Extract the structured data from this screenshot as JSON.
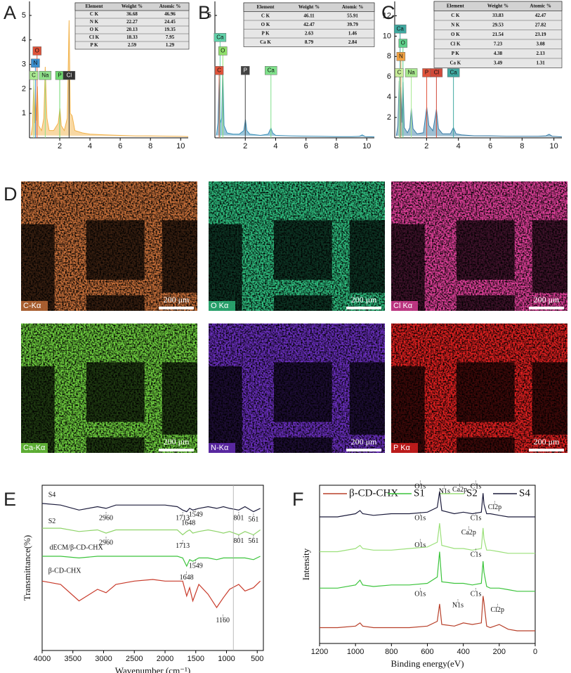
{
  "chart_data": [
    {
      "label": "A",
      "type": "area",
      "x": [
        0.1,
        0.2,
        0.28,
        0.35,
        0.39,
        0.45,
        0.52,
        0.6,
        0.8,
        0.95,
        1.04,
        1.15,
        1.3,
        1.6,
        1.9,
        2.01,
        2.1,
        2.3,
        2.5,
        2.62,
        2.7,
        2.82,
        3.0,
        3.5,
        4,
        5,
        6,
        7,
        8,
        9,
        10,
        10.5
      ],
      "series": [
        {
          "color": "#f2b24a",
          "values": [
            0.1,
            0.5,
            2.2,
            0.6,
            2.0,
            0.7,
            2.1,
            0.5,
            0.3,
            0.8,
            2.9,
            0.8,
            0.3,
            0.3,
            0.6,
            1.2,
            0.5,
            0.3,
            0.8,
            4.8,
            1.0,
            0.9,
            0.3,
            0.2,
            0.15,
            0.12,
            0.1,
            0.08,
            0.08,
            0.07,
            0.06,
            0.05
          ]
        }
      ],
      "xlim": [
        0,
        10.5
      ],
      "xticks": [
        2,
        4,
        6,
        8,
        10
      ],
      "ylim": [
        0,
        5.4
      ],
      "yticks": [
        1,
        2,
        3,
        4,
        5
      ],
      "annotations": [
        {
          "text": "O",
          "color": "#e0533a"
        },
        {
          "text": "N",
          "color": "#3a8fd0"
        },
        {
          "text": "C",
          "color": "#a8e890"
        },
        {
          "text": "Na",
          "color": "#8fe08a"
        },
        {
          "text": "P",
          "color": "#6fd86f"
        },
        {
          "text": "Cl",
          "color": "#333333"
        }
      ],
      "table": {
        "columns": [
          "Element",
          "Weight %",
          "Atomic %"
        ],
        "rows": [
          [
            "C K",
            36.68,
            46.96
          ],
          [
            "N K",
            22.27,
            24.45
          ],
          [
            "O K",
            20.13,
            19.35
          ],
          [
            "Cl K",
            18.33,
            7.95
          ],
          [
            "P K",
            2.59,
            1.29
          ]
        ]
      }
    },
    {
      "label": "B",
      "type": "area",
      "x": [
        0.1,
        0.2,
        0.28,
        0.35,
        0.45,
        0.52,
        0.6,
        0.8,
        1.2,
        1.6,
        1.9,
        2.01,
        2.1,
        2.3,
        3.0,
        3.5,
        3.69,
        3.8,
        4.0,
        5,
        6,
        7,
        8,
        9,
        9.5,
        9.7,
        9.9,
        10.5
      ],
      "series": [
        {
          "color": "#3a8fb8",
          "values": [
            0.1,
            0.6,
            2.4,
            0.6,
            0.8,
            2.9,
            0.5,
            0.2,
            0.15,
            0.15,
            0.3,
            0.75,
            0.3,
            0.15,
            0.1,
            0.15,
            0.4,
            0.2,
            0.1,
            0.08,
            0.07,
            0.06,
            0.05,
            0.05,
            0.06,
            0.12,
            0.05,
            0.04
          ]
        }
      ],
      "xlim": [
        0,
        10.5
      ],
      "xticks": [
        2,
        4,
        6,
        8,
        10
      ],
      "ylim": [
        0,
        5.4
      ],
      "yticks": [
        5
      ],
      "annotations": [
        {
          "text": "Ca",
          "color": "#5fd0a8"
        },
        {
          "text": "O",
          "color": "#8fe06a"
        },
        {
          "text": "C",
          "color": "#e0533a"
        },
        {
          "text": "P",
          "color": "#444444"
        },
        {
          "text": "Ca",
          "color": "#7fe08a"
        }
      ],
      "table": {
        "columns": [
          "Element",
          "Weight %",
          "Atomic %"
        ],
        "rows": [
          [
            "C K",
            46.11,
            55.91
          ],
          [
            "O K",
            42.47,
            39.79
          ],
          [
            "P K",
            2.63,
            1.46
          ],
          [
            "Ca K",
            8.79,
            2.84
          ]
        ]
      }
    },
    {
      "label": "C",
      "type": "area",
      "x": [
        0.1,
        0.2,
        0.28,
        0.35,
        0.39,
        0.45,
        0.52,
        0.6,
        0.8,
        0.95,
        1.04,
        1.15,
        1.4,
        1.8,
        2.01,
        2.15,
        2.4,
        2.62,
        2.75,
        3.0,
        3.5,
        3.69,
        3.85,
        4.2,
        5,
        6,
        7,
        8,
        9,
        9.5,
        9.7,
        9.9,
        10.5
      ],
      "series": [
        {
          "color": "#3d7fa8",
          "values": [
            0.2,
            1.2,
            5.6,
            1.2,
            5.0,
            1.5,
            5.5,
            1.0,
            0.5,
            1.0,
            2.9,
            0.9,
            0.4,
            0.5,
            3.0,
            1.2,
            0.7,
            2.8,
            0.9,
            0.4,
            0.4,
            1.0,
            0.4,
            0.3,
            0.2,
            0.2,
            0.15,
            0.15,
            0.15,
            0.2,
            0.35,
            0.15,
            0.1
          ]
        }
      ],
      "xlim": [
        0,
        10.5
      ],
      "xticks": [
        2,
        4,
        6,
        8,
        10
      ],
      "ylim": [
        0,
        13
      ],
      "yticks": [
        2,
        4,
        6,
        8,
        10,
        12
      ],
      "annotations": [
        {
          "text": "Ca",
          "color": "#3fa8a0"
        },
        {
          "text": "O",
          "color": "#5fd08a"
        },
        {
          "text": "N",
          "color": "#f0a040"
        },
        {
          "text": "C",
          "color": "#c8ec9a"
        },
        {
          "text": "Na",
          "color": "#a8e890"
        },
        {
          "text": "P",
          "color": "#e0533a"
        },
        {
          "text": "Cl",
          "color": "#d04a3a"
        },
        {
          "text": "Ca",
          "color": "#3fa8a0"
        }
      ],
      "table": {
        "columns": [
          "Element",
          "Weight %",
          "Atomic %"
        ],
        "rows": [
          [
            "C K",
            33.83,
            42.47
          ],
          [
            "N K",
            29.53,
            27.82
          ],
          [
            "O K",
            21.54,
            23.19
          ],
          [
            "Cl K",
            7.23,
            3.08
          ],
          [
            "P K",
            4.38,
            2.13
          ],
          [
            "Ca K",
            3.49,
            1.31
          ]
        ]
      }
    },
    {
      "label": "E",
      "type": "line",
      "x": [
        4000,
        3700,
        3400,
        3100,
        2960,
        2800,
        2500,
        2200,
        2000,
        1800,
        1713,
        1648,
        1600,
        1549,
        1450,
        1300,
        1160,
        1050,
        950,
        801,
        700,
        561,
        450
      ],
      "series": [
        {
          "name": "S4",
          "color": "#1c1c3c",
          "values": [
            89,
            88,
            85,
            87,
            86,
            88,
            88,
            88,
            88,
            87,
            85,
            84,
            86,
            85,
            86,
            87,
            86,
            87,
            86,
            85,
            87,
            84,
            86
          ]
        },
        {
          "name": "S2",
          "color": "#8fd46a",
          "values": [
            74,
            74,
            72,
            73,
            71,
            73,
            73,
            73,
            73,
            73,
            70,
            72,
            73,
            71,
            72,
            73,
            72,
            71,
            72,
            70,
            72,
            70,
            73
          ]
        },
        {
          "name": "dECM/β-CD-CHX",
          "color": "#3cc43c",
          "values": [
            57,
            57,
            56,
            57,
            57,
            57,
            57,
            57,
            57,
            57,
            56,
            51,
            55,
            54,
            56,
            56,
            55,
            56,
            56,
            56,
            56,
            55,
            57
          ]
        },
        {
          "name": "β-CD-CHX",
          "color": "#c83a2a",
          "values": [
            42,
            40,
            30,
            37,
            35,
            40,
            42,
            43,
            42,
            42,
            42,
            33,
            38,
            30,
            40,
            34,
            26,
            32,
            37,
            40,
            36,
            38,
            42
          ]
        }
      ],
      "xlim": [
        4000,
        400
      ],
      "xticks": [
        4000,
        3500,
        3000,
        2500,
        2000,
        1500,
        1000,
        500
      ],
      "ylim": [
        0,
        100
      ],
      "xlabel": "Wavenumber (cm⁻¹)",
      "ylabel": "Transmittance(%)",
      "annotations": [
        {
          "text": "2960"
        },
        {
          "text": "1713"
        },
        {
          "text": "1648"
        },
        {
          "text": "1549"
        },
        {
          "text": "801"
        },
        {
          "text": "561"
        },
        {
          "text": "2960"
        },
        {
          "text": "1713"
        },
        {
          "text": "801"
        },
        {
          "text": "561"
        },
        {
          "text": "1549"
        },
        {
          "text": "1648"
        },
        {
          "text": "1160"
        }
      ]
    },
    {
      "label": "F",
      "type": "line",
      "x": [
        1200,
        1100,
        1000,
        975,
        960,
        900,
        800,
        700,
        600,
        545,
        532,
        520,
        450,
        400,
        350,
        300,
        290,
        285,
        270,
        250,
        200,
        150,
        100,
        0
      ],
      "series": [
        {
          "name": "β-CD-CHX",
          "color": "#b8402a",
          "values": [
            10,
            10,
            11,
            13,
            11,
            10,
            10,
            10,
            11,
            14,
            25,
            12,
            11,
            13,
            12,
            13,
            30,
            26,
            11,
            10,
            12,
            9,
            8,
            8
          ]
        },
        {
          "name": "S1",
          "color": "#3cc43c",
          "values": [
            35,
            35,
            37,
            40,
            37,
            36,
            37,
            37,
            38,
            42,
            58,
            39,
            38,
            38,
            37,
            38,
            52,
            45,
            36,
            35,
            35,
            34,
            33,
            33
          ]
        },
        {
          "name": "S2",
          "color": "#9be07a",
          "values": [
            58,
            58,
            60,
            62,
            60,
            59,
            59,
            60,
            61,
            64,
            76,
            62,
            60,
            60,
            59,
            60,
            73,
            66,
            59,
            59,
            58,
            57,
            57,
            57
          ]
        },
        {
          "name": "S4",
          "color": "#1c1c3c",
          "values": [
            80,
            80,
            82,
            84,
            82,
            81,
            82,
            82,
            83,
            86,
            96,
            84,
            82,
            83,
            82,
            83,
            95,
            88,
            82,
            82,
            81,
            80,
            80,
            80
          ]
        }
      ],
      "xlim": [
        1200,
        0
      ],
      "xticks": [
        1200,
        1000,
        800,
        600,
        400,
        200,
        0
      ],
      "ylim": [
        0,
        100
      ],
      "legend": "top",
      "xlabel": "Binding energy(eV)",
      "ylabel": "Intensity",
      "annotations": [
        {
          "text": "O1s"
        },
        {
          "text": "N1s"
        },
        {
          "text": "Ca2p"
        },
        {
          "text": "C1s"
        },
        {
          "text": "Cl2p"
        },
        {
          "text": "O1s"
        },
        {
          "text": "C1s"
        },
        {
          "text": "Ca2p"
        },
        {
          "text": "O1s"
        },
        {
          "text": "C1s"
        },
        {
          "text": "O1s"
        },
        {
          "text": "N1s"
        },
        {
          "text": "C1s"
        },
        {
          "text": "Cl2p"
        }
      ]
    }
  ],
  "maps": {
    "label": "D",
    "panels": [
      {
        "label": "C-Kα",
        "scale": "200 μm",
        "color": "#c8703a"
      },
      {
        "label": "O Kα",
        "scale": "200 μm",
        "color": "#2fbf80"
      },
      {
        "label": "Cl Kα",
        "scale": "200 μm",
        "color": "#e0409a"
      },
      {
        "label": "Ca-Kα",
        "scale": "200 μm",
        "color": "#6fcf3f"
      },
      {
        "label": "N-Kα",
        "scale": "200 μm",
        "color": "#6a2fbf"
      },
      {
        "label": "P Kα",
        "scale": "200 μm",
        "color": "#e02020"
      }
    ]
  }
}
